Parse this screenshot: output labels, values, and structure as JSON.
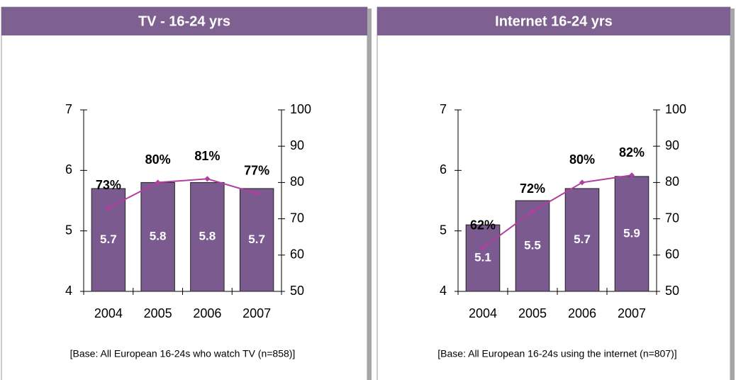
{
  "chart_data": [
    {
      "type": "bar-line",
      "title": "TV - 16-24 yrs",
      "categories": [
        "2004",
        "2005",
        "2006",
        "2007"
      ],
      "series": [
        {
          "type": "bar",
          "color": "#7b5b8f",
          "values": [
            5.7,
            5.8,
            5.8,
            5.7
          ]
        },
        {
          "type": "line",
          "axis": "y2",
          "color": "#b0409f",
          "values": [
            73,
            80,
            81,
            77
          ],
          "value_labels": [
            "73%",
            "80%",
            "81%",
            "77%"
          ]
        }
      ],
      "ylim": [
        4,
        7
      ],
      "yticks": [
        4,
        5,
        6,
        7
      ],
      "y2lim": [
        50,
        100
      ],
      "y2ticks": [
        50,
        60,
        70,
        80,
        90,
        100
      ],
      "note": "[Base: All European 16-24s who watch TV (n=858)]"
    },
    {
      "type": "bar-line",
      "title": "Internet 16-24 yrs",
      "categories": [
        "2004",
        "2005",
        "2006",
        "2007"
      ],
      "series": [
        {
          "type": "bar",
          "color": "#7b5b8f",
          "values": [
            5.1,
            5.5,
            5.7,
            5.9
          ]
        },
        {
          "type": "line",
          "axis": "y2",
          "color": "#b0409f",
          "values": [
            62,
            72,
            80,
            82
          ],
          "value_labels": [
            "62%",
            "72%",
            "80%",
            "82%"
          ]
        }
      ],
      "ylim": [
        4,
        7
      ],
      "yticks": [
        4,
        5,
        6,
        7
      ],
      "y2lim": [
        50,
        100
      ],
      "y2ticks": [
        50,
        60,
        70,
        80,
        90,
        100
      ],
      "note": "[Base: All European 16-24s using the internet (n=807)]"
    }
  ]
}
